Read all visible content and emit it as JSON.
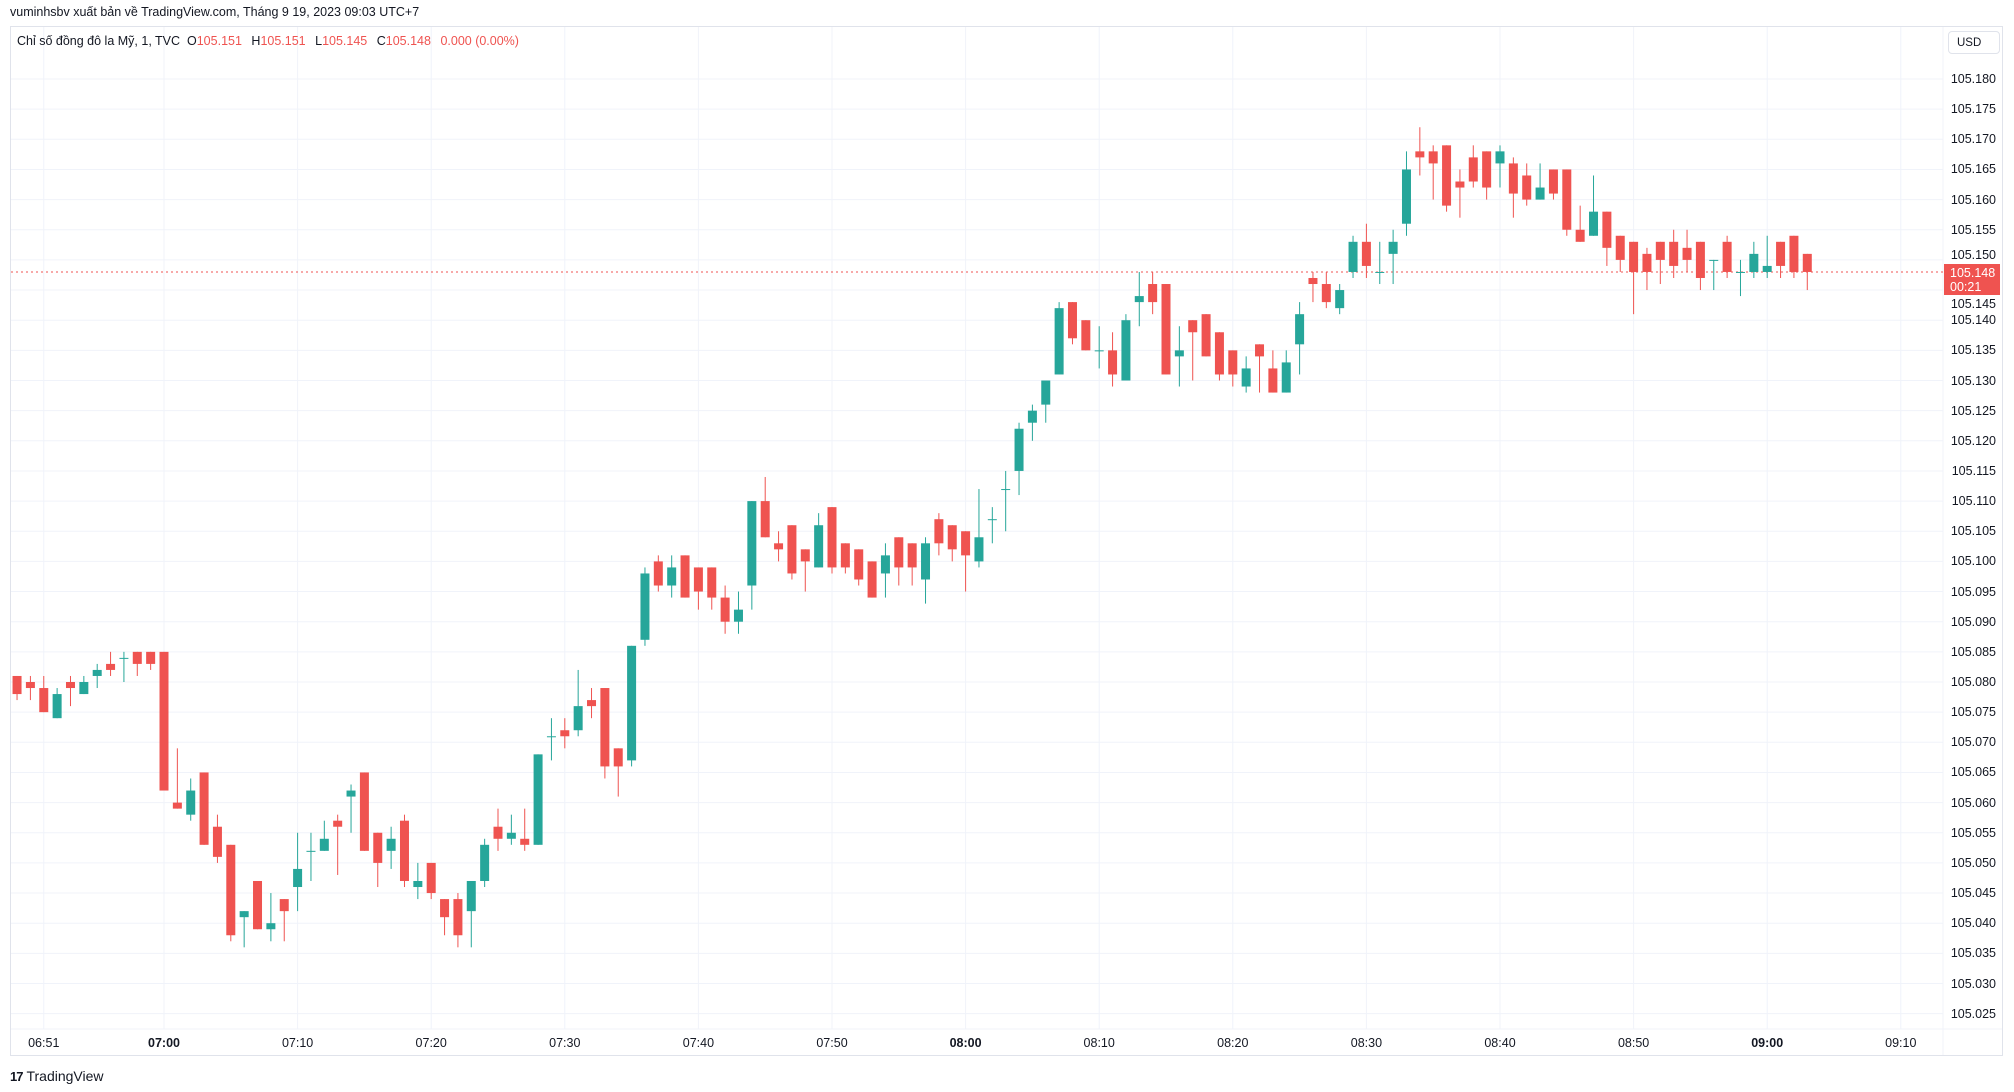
{
  "attribution": "vuminhsbv xuất bản về TradingView.com, Tháng 9 19, 2023 09:03 UTC+7",
  "legend": {
    "symbol": "Chỉ số đồng đô la Mỹ, 1, TVC",
    "o_label": "O",
    "o_value": "105.151",
    "h_label": "H",
    "h_value": "105.151",
    "l_label": "L",
    "l_value": "105.145",
    "c_label": "C",
    "c_value": "105.148",
    "change": "0.000 (0.00%)"
  },
  "currency_button": "USD",
  "last_price": {
    "value": "105.148",
    "countdown": "00:21"
  },
  "footer": {
    "logo_mark": "17",
    "logo_text": "TradingView"
  },
  "colors": {
    "up": "#26a69a",
    "down": "#ef5350",
    "grid": "#f0f3fa"
  },
  "chart_data": {
    "type": "candlestick",
    "title": "Chỉ số đồng đô la Mỹ, 1, TVC",
    "xlabel": "",
    "ylabel": "USD",
    "ylim": [
      105.025,
      105.18
    ],
    "grid": true,
    "last_price": 105.148,
    "y_ticks": [
      "105.180",
      "105.175",
      "105.170",
      "105.165",
      "105.160",
      "105.155",
      "105.150",
      "105.145",
      "105.140",
      "105.135",
      "105.130",
      "105.125",
      "105.120",
      "105.115",
      "105.110",
      "105.105",
      "105.100",
      "105.095",
      "105.090",
      "105.085",
      "105.080",
      "105.075",
      "105.070",
      "105.065",
      "105.060",
      "105.055",
      "105.050",
      "105.045",
      "105.040",
      "105.035",
      "105.030",
      "105.025"
    ],
    "x_ticks": [
      {
        "label": "06:51",
        "bold": false
      },
      {
        "label": "07:00",
        "bold": true
      },
      {
        "label": "07:10",
        "bold": false
      },
      {
        "label": "07:20",
        "bold": false
      },
      {
        "label": "07:30",
        "bold": false
      },
      {
        "label": "07:40",
        "bold": false
      },
      {
        "label": "07:50",
        "bold": false
      },
      {
        "label": "08:00",
        "bold": true
      },
      {
        "label": "08:10",
        "bold": false
      },
      {
        "label": "08:20",
        "bold": false
      },
      {
        "label": "08:30",
        "bold": false
      },
      {
        "label": "08:40",
        "bold": false
      },
      {
        "label": "08:50",
        "bold": false
      },
      {
        "label": "09:00",
        "bold": true
      },
      {
        "label": "09:10",
        "bold": false
      }
    ],
    "columns": [
      "time",
      "open",
      "high",
      "low",
      "close"
    ],
    "candles": [
      [
        "06:49",
        105.081,
        105.081,
        105.077,
        105.078
      ],
      [
        "06:50",
        105.08,
        105.081,
        105.077,
        105.079
      ],
      [
        "06:51",
        105.079,
        105.081,
        105.075,
        105.075
      ],
      [
        "06:52",
        105.074,
        105.079,
        105.074,
        105.078
      ],
      [
        "06:53",
        105.08,
        105.081,
        105.076,
        105.079
      ],
      [
        "06:54",
        105.078,
        105.081,
        105.078,
        105.08
      ],
      [
        "06:55",
        105.081,
        105.083,
        105.079,
        105.082
      ],
      [
        "06:56",
        105.083,
        105.085,
        105.081,
        105.082
      ],
      [
        "06:57",
        105.084,
        105.085,
        105.08,
        105.084
      ],
      [
        "06:58",
        105.085,
        105.085,
        105.081,
        105.083
      ],
      [
        "06:59",
        105.085,
        105.085,
        105.082,
        105.083
      ],
      [
        "07:00",
        105.085,
        105.085,
        105.062,
        105.062
      ],
      [
        "07:01",
        105.06,
        105.069,
        105.059,
        105.059
      ],
      [
        "07:02",
        105.058,
        105.064,
        105.057,
        105.062
      ],
      [
        "07:03",
        105.065,
        105.065,
        105.053,
        105.053
      ],
      [
        "07:04",
        105.056,
        105.058,
        105.05,
        105.051
      ],
      [
        "07:05",
        105.053,
        105.053,
        105.037,
        105.038
      ],
      [
        "07:06",
        105.041,
        105.042,
        105.036,
        105.042
      ],
      [
        "07:07",
        105.047,
        105.047,
        105.039,
        105.039
      ],
      [
        "07:08",
        105.039,
        105.045,
        105.037,
        105.04
      ],
      [
        "07:09",
        105.044,
        105.044,
        105.037,
        105.042
      ],
      [
        "07:10",
        105.046,
        105.055,
        105.042,
        105.049
      ],
      [
        "07:11",
        105.052,
        105.055,
        105.047,
        105.052
      ],
      [
        "07:12",
        105.052,
        105.057,
        105.052,
        105.054
      ],
      [
        "07:13",
        105.057,
        105.058,
        105.048,
        105.056
      ],
      [
        "07:14",
        105.061,
        105.063,
        105.055,
        105.062
      ],
      [
        "07:15",
        105.065,
        105.065,
        105.052,
        105.052
      ],
      [
        "07:16",
        105.055,
        105.055,
        105.046,
        105.05
      ],
      [
        "07:17",
        105.052,
        105.056,
        105.049,
        105.054
      ],
      [
        "07:18",
        105.057,
        105.058,
        105.046,
        105.047
      ],
      [
        "07:19",
        105.046,
        105.05,
        105.044,
        105.047
      ],
      [
        "07:20",
        105.05,
        105.05,
        105.044,
        105.045
      ],
      [
        "07:21",
        105.044,
        105.044,
        105.038,
        105.041
      ],
      [
        "07:22",
        105.044,
        105.045,
        105.036,
        105.038
      ],
      [
        "07:23",
        105.042,
        105.047,
        105.036,
        105.047
      ],
      [
        "07:24",
        105.047,
        105.054,
        105.046,
        105.053
      ],
      [
        "07:25",
        105.056,
        105.059,
        105.052,
        105.054
      ],
      [
        "07:26",
        105.054,
        105.058,
        105.053,
        105.055
      ],
      [
        "07:27",
        105.054,
        105.059,
        105.052,
        105.053
      ],
      [
        "07:28",
        105.053,
        105.068,
        105.053,
        105.068
      ],
      [
        "07:29",
        105.071,
        105.074,
        105.067,
        105.071
      ],
      [
        "07:30",
        105.072,
        105.074,
        105.069,
        105.071
      ],
      [
        "07:31",
        105.072,
        105.082,
        105.071,
        105.076
      ],
      [
        "07:32",
        105.077,
        105.079,
        105.074,
        105.076
      ],
      [
        "07:33",
        105.079,
        105.079,
        105.064,
        105.066
      ],
      [
        "07:34",
        105.069,
        105.069,
        105.061,
        105.066
      ],
      [
        "07:35",
        105.067,
        105.086,
        105.066,
        105.086
      ],
      [
        "07:36",
        105.087,
        105.099,
        105.086,
        105.098
      ],
      [
        "07:37",
        105.1,
        105.101,
        105.095,
        105.096
      ],
      [
        "07:38",
        105.096,
        105.101,
        105.094,
        105.099
      ],
      [
        "07:39",
        105.101,
        105.101,
        105.094,
        105.094
      ],
      [
        "07:40",
        105.099,
        105.099,
        105.092,
        105.095
      ],
      [
        "07:41",
        105.099,
        105.099,
        105.092,
        105.094
      ],
      [
        "07:42",
        105.094,
        105.096,
        105.088,
        105.09
      ],
      [
        "07:43",
        105.09,
        105.095,
        105.088,
        105.092
      ],
      [
        "07:44",
        105.096,
        105.11,
        105.092,
        105.11
      ],
      [
        "07:45",
        105.11,
        105.114,
        105.104,
        105.104
      ],
      [
        "07:46",
        105.103,
        105.105,
        105.1,
        105.102
      ],
      [
        "07:47",
        105.106,
        105.106,
        105.097,
        105.098
      ],
      [
        "07:48",
        105.102,
        105.102,
        105.095,
        105.1
      ],
      [
        "07:49",
        105.099,
        105.108,
        105.099,
        105.106
      ],
      [
        "07:50",
        105.109,
        105.109,
        105.098,
        105.099
      ],
      [
        "07:51",
        105.103,
        105.103,
        105.098,
        105.099
      ],
      [
        "07:52",
        105.102,
        105.102,
        105.096,
        105.097
      ],
      [
        "07:53",
        105.1,
        105.1,
        105.094,
        105.094
      ],
      [
        "07:54",
        105.098,
        105.103,
        105.094,
        105.101
      ],
      [
        "07:55",
        105.104,
        105.104,
        105.096,
        105.099
      ],
      [
        "07:56",
        105.103,
        105.103,
        105.096,
        105.099
      ],
      [
        "07:57",
        105.097,
        105.104,
        105.093,
        105.103
      ],
      [
        "07:58",
        105.107,
        105.108,
        105.101,
        105.103
      ],
      [
        "07:59",
        105.106,
        105.106,
        105.1,
        105.102
      ],
      [
        "08:00",
        105.105,
        105.105,
        105.095,
        105.101
      ],
      [
        "08:01",
        105.1,
        105.112,
        105.099,
        105.104
      ],
      [
        "08:02",
        105.107,
        105.109,
        105.103,
        105.107
      ],
      [
        "08:03",
        105.112,
        105.115,
        105.105,
        105.112
      ],
      [
        "08:04",
        105.115,
        105.123,
        105.111,
        105.122
      ],
      [
        "08:05",
        105.123,
        105.126,
        105.12,
        105.125
      ],
      [
        "08:06",
        105.126,
        105.13,
        105.123,
        105.13
      ],
      [
        "08:07",
        105.131,
        105.143,
        105.131,
        105.142
      ],
      [
        "08:08",
        105.143,
        105.143,
        105.136,
        105.137
      ],
      [
        "08:09",
        105.14,
        105.14,
        105.135,
        105.135
      ],
      [
        "08:10",
        105.135,
        105.139,
        105.132,
        105.135
      ],
      [
        "08:11",
        105.135,
        105.138,
        105.129,
        105.131
      ],
      [
        "08:12",
        105.13,
        105.141,
        105.13,
        105.14
      ],
      [
        "08:13",
        105.143,
        105.148,
        105.139,
        105.144
      ],
      [
        "08:14",
        105.146,
        105.148,
        105.141,
        105.143
      ],
      [
        "08:15",
        105.146,
        105.146,
        105.131,
        105.131
      ],
      [
        "08:16",
        105.134,
        105.139,
        105.129,
        105.135
      ],
      [
        "08:17",
        105.14,
        105.14,
        105.13,
        105.138
      ],
      [
        "08:18",
        105.141,
        105.141,
        105.134,
        105.134
      ],
      [
        "08:19",
        105.138,
        105.138,
        105.13,
        105.131
      ],
      [
        "08:20",
        105.135,
        105.135,
        105.129,
        105.131
      ],
      [
        "08:21",
        105.129,
        105.134,
        105.128,
        105.132
      ],
      [
        "08:22",
        105.136,
        105.136,
        105.128,
        105.134
      ],
      [
        "08:23",
        105.132,
        105.135,
        105.128,
        105.128
      ],
      [
        "08:24",
        105.128,
        105.135,
        105.128,
        105.133
      ],
      [
        "08:25",
        105.136,
        105.143,
        105.131,
        105.141
      ],
      [
        "08:26",
        105.147,
        105.148,
        105.143,
        105.146
      ],
      [
        "08:27",
        105.146,
        105.148,
        105.142,
        105.143
      ],
      [
        "08:28",
        105.142,
        105.146,
        105.141,
        105.145
      ],
      [
        "08:29",
        105.148,
        105.154,
        105.147,
        105.153
      ],
      [
        "08:30",
        105.153,
        105.156,
        105.147,
        105.149
      ],
      [
        "08:31",
        105.148,
        105.153,
        105.146,
        105.148
      ],
      [
        "08:32",
        105.151,
        105.155,
        105.146,
        105.153
      ],
      [
        "08:33",
        105.156,
        105.168,
        105.154,
        105.165
      ],
      [
        "08:34",
        105.168,
        105.172,
        105.164,
        105.167
      ],
      [
        "08:35",
        105.168,
        105.169,
        105.16,
        105.166
      ],
      [
        "08:36",
        105.169,
        105.169,
        105.158,
        105.159
      ],
      [
        "08:37",
        105.163,
        105.165,
        105.157,
        105.162
      ],
      [
        "08:38",
        105.167,
        105.169,
        105.162,
        105.163
      ],
      [
        "08:39",
        105.168,
        105.168,
        105.16,
        105.162
      ],
      [
        "08:40",
        105.166,
        105.169,
        105.162,
        105.168
      ],
      [
        "08:41",
        105.166,
        105.167,
        105.157,
        105.161
      ],
      [
        "08:42",
        105.164,
        105.166,
        105.159,
        105.16
      ],
      [
        "08:43",
        105.16,
        105.166,
        105.16,
        105.162
      ],
      [
        "08:44",
        105.165,
        105.165,
        105.16,
        105.161
      ],
      [
        "08:45",
        105.165,
        105.165,
        105.154,
        105.155
      ],
      [
        "08:46",
        105.155,
        105.159,
        105.153,
        105.153
      ],
      [
        "08:47",
        105.154,
        105.164,
        105.154,
        105.158
      ],
      [
        "08:48",
        105.158,
        105.158,
        105.149,
        105.152
      ],
      [
        "08:49",
        105.154,
        105.154,
        105.148,
        105.15
      ],
      [
        "08:50",
        105.153,
        105.153,
        105.141,
        105.148
      ],
      [
        "08:51",
        105.151,
        105.152,
        105.145,
        105.148
      ],
      [
        "08:52",
        105.153,
        105.153,
        105.146,
        105.15
      ],
      [
        "08:53",
        105.153,
        105.155,
        105.147,
        105.149
      ],
      [
        "08:54",
        105.152,
        105.155,
        105.148,
        105.15
      ],
      [
        "08:55",
        105.153,
        105.153,
        105.145,
        105.147
      ],
      [
        "08:56",
        105.15,
        105.15,
        105.145,
        105.15
      ],
      [
        "08:57",
        105.153,
        105.154,
        105.147,
        105.148
      ],
      [
        "08:58",
        105.148,
        105.15,
        105.144,
        105.148
      ],
      [
        "08:59",
        105.148,
        105.153,
        105.147,
        105.151
      ],
      [
        "09:00",
        105.148,
        105.154,
        105.147,
        105.149
      ],
      [
        "09:01",
        105.153,
        105.153,
        105.147,
        105.149
      ],
      [
        "09:02",
        105.154,
        105.154,
        105.147,
        105.148
      ],
      [
        "09:03",
        105.151,
        105.151,
        105.145,
        105.148
      ]
    ]
  }
}
